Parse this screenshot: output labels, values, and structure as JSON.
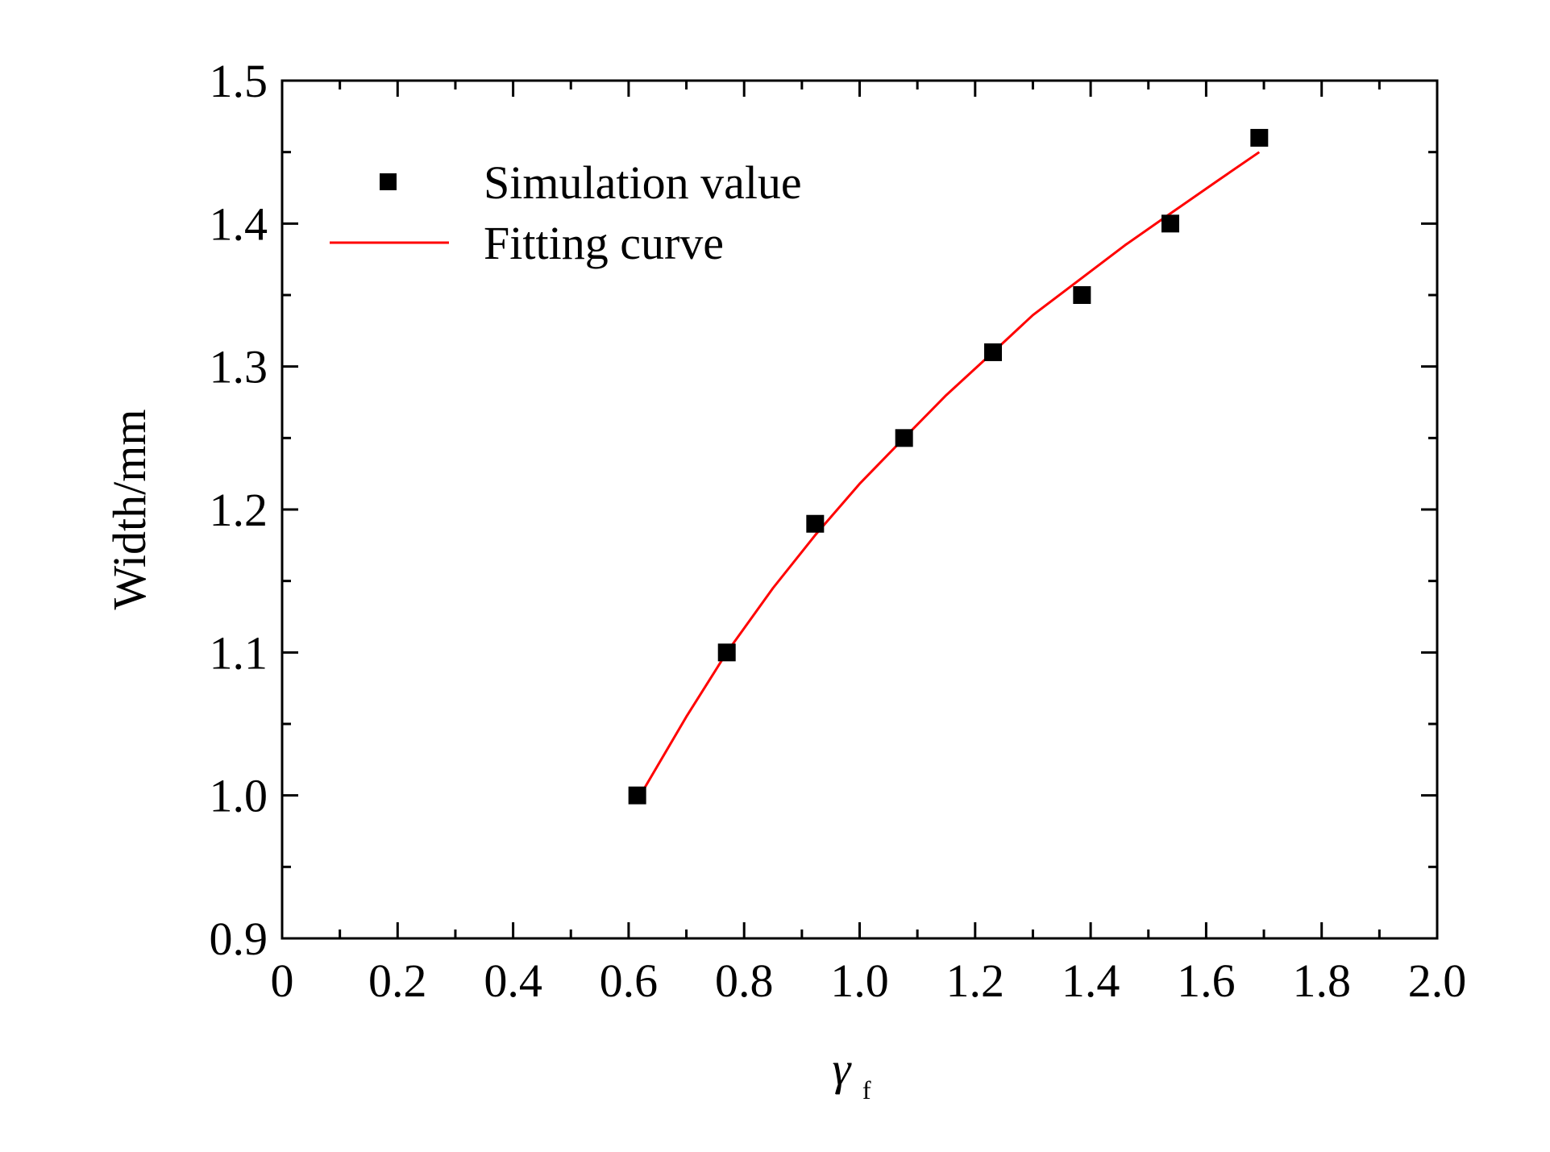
{
  "chart_data": {
    "type": "scatter",
    "title": "",
    "xlabel": "γ",
    "xlabel_subscript": "f",
    "ylabel": "Width/mm",
    "xlim": [
      0,
      2.0
    ],
    "ylim": [
      0.9,
      1.5
    ],
    "x_ticks": [
      0,
      0.2,
      0.4,
      0.6,
      0.8,
      1.0,
      1.2,
      1.4,
      1.6,
      1.8,
      2.0
    ],
    "x_tick_labels": [
      "0",
      "0.2",
      "0.4",
      "0.6",
      "0.8",
      "1.0",
      "1.2",
      "1.4",
      "1.6",
      "1.8",
      "2.0"
    ],
    "y_ticks": [
      0.9,
      1.0,
      1.1,
      1.2,
      1.3,
      1.4,
      1.5
    ],
    "y_tick_labels": [
      "0.9",
      "1.0",
      "1.1",
      "1.2",
      "1.3",
      "1.4",
      "1.5"
    ],
    "grid": false,
    "legend_position": "top-left",
    "series": [
      {
        "name": "Simulation value",
        "kind": "scatter",
        "marker": "square",
        "color": "#000000",
        "x": [
          0.615,
          0.77,
          0.923,
          1.077,
          1.231,
          1.385,
          1.538,
          1.692
        ],
        "y": [
          1.0,
          1.1,
          1.19,
          1.25,
          1.31,
          1.35,
          1.4,
          1.46
        ]
      },
      {
        "name": "Fitting curve",
        "kind": "line",
        "color": "#ff0000",
        "x": [
          0.62,
          0.7,
          0.77,
          0.85,
          0.923,
          1.0,
          1.077,
          1.15,
          1.231,
          1.3,
          1.385,
          1.46,
          1.538,
          1.62,
          1.692
        ],
        "y": [
          1.0,
          1.055,
          1.1,
          1.145,
          1.182,
          1.218,
          1.25,
          1.28,
          1.31,
          1.336,
          1.362,
          1.385,
          1.407,
          1.43,
          1.45
        ]
      }
    ]
  }
}
